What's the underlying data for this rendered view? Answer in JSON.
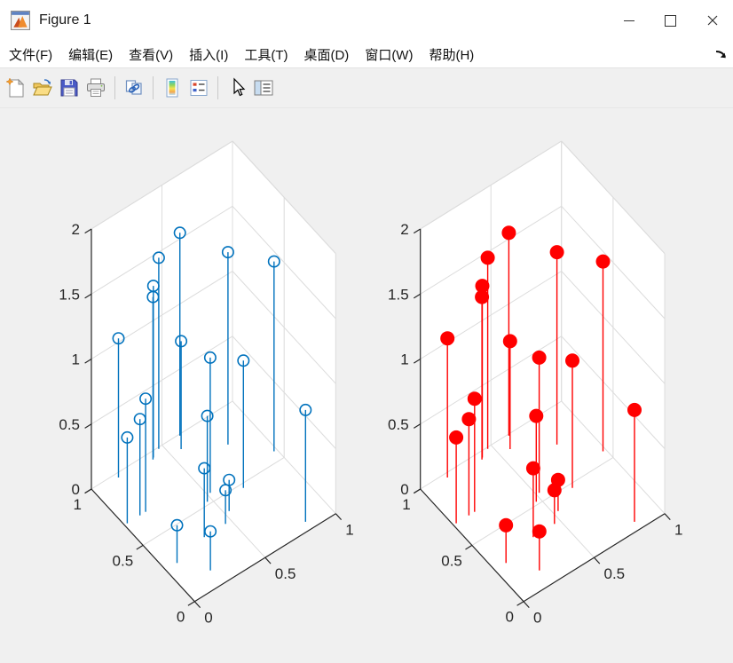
{
  "window": {
    "title": "Figure 1"
  },
  "menu": {
    "items": [
      {
        "label": "文件(F)"
      },
      {
        "label": "编辑(E)"
      },
      {
        "label": "查看(V)"
      },
      {
        "label": "插入(I)"
      },
      {
        "label": "工具(T)"
      },
      {
        "label": "桌面(D)"
      },
      {
        "label": "窗口(W)"
      },
      {
        "label": "帮助(H)"
      }
    ]
  },
  "toolbar": {
    "icons": [
      "new-figure",
      "open-file",
      "save-figure",
      "print-figure",
      "link-plot",
      "insert-colorbar",
      "insert-legend",
      "edit-plot",
      "plot-browser"
    ]
  },
  "chart_data": {
    "type": "scatter",
    "subtype": "stem3",
    "description": "Two 3-D stem plots (MATLAB stem3) of the same 20 points; left subplot uses open blue circle markers, right subplot uses filled red markers",
    "points": [
      [
        0.62,
        0.99,
        1.56
      ],
      [
        0.47,
        0.99,
        1.47
      ],
      [
        0.8,
        0.77,
        1.48
      ],
      [
        0.98,
        0.57,
        1.46
      ],
      [
        0.41,
        0.96,
        1.32
      ],
      [
        0.4,
        0.95,
        1.25
      ],
      [
        0.17,
        0.97,
        1.07
      ],
      [
        0.57,
        0.91,
        0.83
      ],
      [
        0.52,
        0.56,
        1.04
      ],
      [
        0.69,
        0.47,
        0.98
      ],
      [
        0.15,
        0.68,
        0.87
      ],
      [
        0.11,
        0.68,
        0.74
      ],
      [
        0.47,
        0.52,
        0.66
      ],
      [
        0.83,
        0.06,
        0.86
      ],
      [
        0.02,
        0.68,
        0.66
      ],
      [
        0.31,
        0.33,
        0.53
      ],
      [
        0.53,
        0.39,
        0.24
      ],
      [
        0.46,
        0.33,
        0.26
      ],
      [
        0.08,
        0.28,
        0.29
      ],
      [
        0.2,
        0.12,
        0.3
      ]
    ],
    "xlim": [
      0,
      1
    ],
    "ylim": [
      0,
      1
    ],
    "zlim": [
      0,
      2
    ],
    "xticks": [
      0,
      0.5,
      1
    ],
    "yticks": [
      0,
      0.5,
      1
    ],
    "zticks": [
      0,
      0.5,
      1,
      1.5,
      2
    ],
    "grid": true,
    "view": {
      "azimuth": -37.5,
      "elevation": 30
    },
    "colors": {
      "axis": "#262626",
      "grid": "#dcdcdc",
      "axes_background": "#ffffff",
      "figure_background": "#f0f0f0"
    },
    "subplots": [
      {
        "name": "left-stem3-plot",
        "series": "stem3 open markers",
        "color": "#0072BD",
        "marker": "open-circle",
        "marker_fill": "none",
        "marker_radius": 6.2
      },
      {
        "name": "right-stem3-plot",
        "series": "stem3 filled markers",
        "color": "#FF0000",
        "marker": "filled-circle",
        "marker_fill": "#FF0000",
        "marker_radius": 7.2
      }
    ]
  }
}
